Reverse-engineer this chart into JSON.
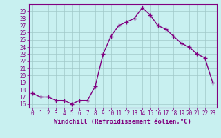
{
  "x": [
    0,
    1,
    2,
    3,
    4,
    5,
    6,
    7,
    8,
    9,
    10,
    11,
    12,
    13,
    14,
    15,
    16,
    17,
    18,
    19,
    20,
    21,
    22,
    23
  ],
  "y": [
    17.5,
    17.0,
    17.0,
    16.5,
    16.5,
    16.0,
    16.5,
    16.5,
    18.5,
    23.0,
    25.5,
    27.0,
    27.5,
    28.0,
    29.5,
    28.5,
    27.0,
    26.5,
    25.5,
    24.5,
    24.0,
    23.0,
    22.5,
    19.0
  ],
  "line_color": "#800080",
  "marker": "+",
  "marker_size": 4,
  "bg_color": "#c8f0f0",
  "grid_color": "#a0c8c8",
  "xlabel": "Windchill (Refroidissement éolien,°C)",
  "xlim": [
    -0.5,
    23.5
  ],
  "ylim": [
    15.5,
    30.0
  ],
  "yticks": [
    16,
    17,
    18,
    19,
    20,
    21,
    22,
    23,
    24,
    25,
    26,
    27,
    28,
    29
  ],
  "xticks": [
    0,
    1,
    2,
    3,
    4,
    5,
    6,
    7,
    8,
    9,
    10,
    11,
    12,
    13,
    14,
    15,
    16,
    17,
    18,
    19,
    20,
    21,
    22,
    23
  ],
  "tick_color": "#800080",
  "label_color": "#800080",
  "font_size": 5.5,
  "xlabel_fontsize": 6.5,
  "linewidth": 1.0,
  "axis_color": "#800080",
  "spine_color": "#800080"
}
